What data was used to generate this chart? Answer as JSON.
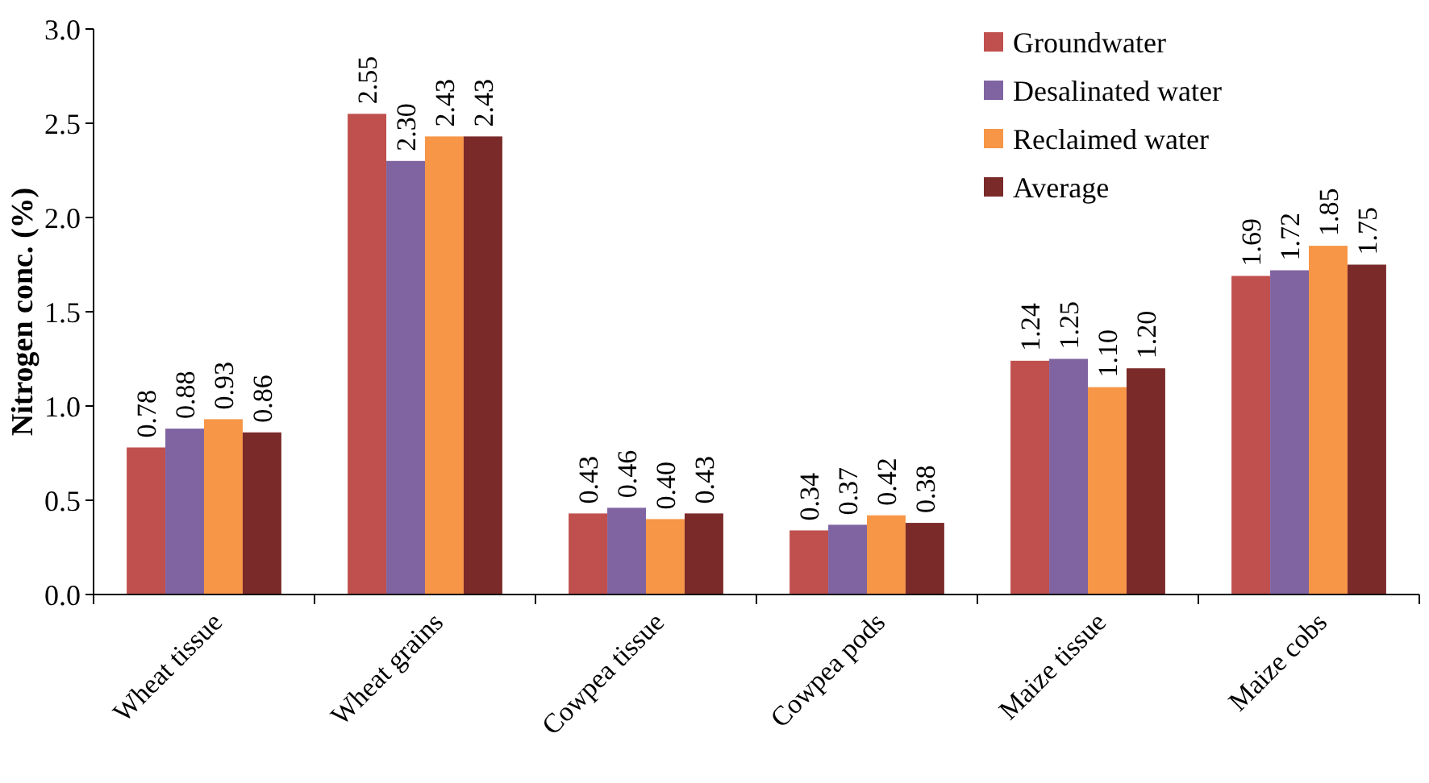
{
  "chart_data": {
    "type": "bar",
    "ylabel": "Nitrogen conc. (%)",
    "categories": [
      "Wheat tissue",
      "Wheat grains",
      "Cowpea tissue",
      "Cowpea pods",
      "Maize tissue",
      "Maize cobs"
    ],
    "series": [
      {
        "name": "Groundwater",
        "color": "#c0504d",
        "values": [
          0.78,
          2.55,
          0.43,
          0.34,
          1.24,
          1.69
        ],
        "value_labels": [
          "0.78",
          "2.55",
          "0.43",
          "0.34",
          "1.24",
          "1.69"
        ]
      },
      {
        "name": "Desalinated water",
        "color": "#8064a2",
        "values": [
          0.88,
          2.3,
          0.46,
          0.37,
          1.25,
          1.72
        ],
        "value_labels": [
          "0.88",
          "2.30",
          "0.46",
          "0.37",
          "1.25",
          "1.72"
        ]
      },
      {
        "name": "Reclaimed water",
        "color": "#f79646",
        "values": [
          0.93,
          2.43,
          0.4,
          0.42,
          1.1,
          1.85
        ],
        "value_labels": [
          "0.93",
          "2.43",
          "0.40",
          "0.42",
          "1.10",
          "1.85"
        ]
      },
      {
        "name": "Average",
        "color": "#7b2a2a",
        "values": [
          0.86,
          2.43,
          0.43,
          0.38,
          1.2,
          1.75
        ],
        "value_labels": [
          "0.86",
          "2.43",
          "0.43",
          "0.38",
          "1.20",
          "1.75"
        ]
      }
    ],
    "ylim": [
      0,
      3
    ],
    "yticks": [
      {
        "value": 0,
        "label": "0.0"
      },
      {
        "value": 0.5,
        "label": "0.5"
      },
      {
        "value": 1,
        "label": "1.0"
      },
      {
        "value": 1.5,
        "label": "1.5"
      },
      {
        "value": 2,
        "label": "2.0"
      },
      {
        "value": 2.5,
        "label": "2.5"
      },
      {
        "value": 3,
        "label": "3.0"
      }
    ],
    "legend": "top right",
    "grid": false
  }
}
